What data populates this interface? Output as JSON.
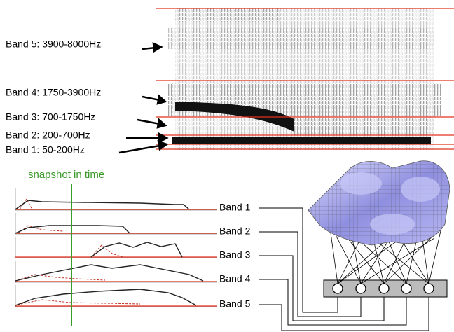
{
  "spectrogram_labels": [
    "Band 5: 3900-8000Hz",
    "Band 4: 1750-3900Hz",
    "Band 3: 700-1750Hz",
    "Band 2: 200-700Hz",
    "Band 1: 50-200Hz"
  ],
  "snapshot_label": "snapshot in time",
  "envelope_labels": [
    "Band 1",
    "Band 2",
    "Band 3",
    "Band 4",
    "Band 5"
  ]
}
